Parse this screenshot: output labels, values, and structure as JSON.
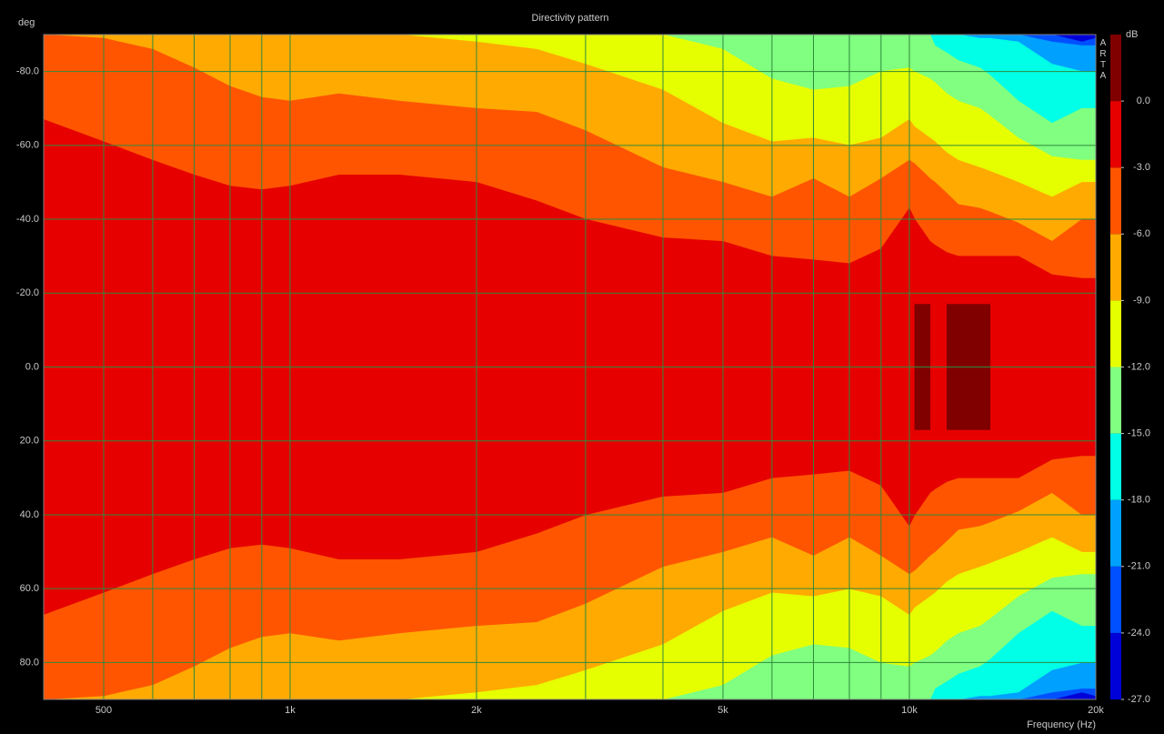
{
  "chart_data": {
    "type": "contour",
    "title": "Directivity pattern",
    "y_label": "deg",
    "x_label": "Frequency (Hz)",
    "watermark": "ARTA",
    "log_x": true,
    "grid": true,
    "grid_color": "#2f8a3c",
    "xlim": [
      400,
      20000
    ],
    "xticks": [
      500,
      {
        "value": 1000,
        "label": "1k"
      },
      {
        "value": 2000,
        "label": "2k"
      },
      {
        "value": 5000,
        "label": "5k"
      },
      {
        "value": 10000,
        "label": "10k"
      },
      {
        "value": 20000,
        "label": "20k"
      }
    ],
    "x_minor_grid": [
      600,
      700,
      800,
      900,
      3000,
      4000,
      6000,
      7000,
      8000,
      9000
    ],
    "ylim": [
      -90,
      90
    ],
    "yticks": [
      {
        "value": -80,
        "label": "-80.0"
      },
      {
        "value": -60,
        "label": "-60.0"
      },
      {
        "value": -40,
        "label": "-40.0"
      },
      {
        "value": -20,
        "label": "-20.0"
      },
      {
        "value": 0,
        "label": "0.0"
      },
      {
        "value": 20,
        "label": "20.0"
      },
      {
        "value": 40,
        "label": "40.0"
      },
      {
        "value": 60,
        "label": "60.0"
      },
      {
        "value": 80,
        "label": "80.0"
      }
    ],
    "x": [
      400,
      500,
      600,
      700,
      800,
      900,
      1000,
      1200,
      1500,
      2000,
      2500,
      3000,
      4000,
      5000,
      6000,
      7000,
      8000,
      9000,
      10000,
      10200,
      10800,
      11000,
      11500,
      12000,
      13000,
      13500,
      15000,
      17000,
      19000,
      20000
    ],
    "base_color": "#0000d8",
    "contours": [
      {
        "level": -24,
        "color": "#0050ff",
        "values": [
          90,
          90,
          90,
          90,
          90,
          90,
          90,
          90,
          90,
          90,
          90,
          90,
          90,
          90,
          90,
          90,
          90,
          90,
          90,
          90,
          90,
          90,
          90,
          90,
          90,
          90,
          90,
          90,
          88,
          89
        ]
      },
      {
        "level": -21,
        "color": "#00a0ff",
        "values": [
          90,
          90,
          90,
          90,
          90,
          90,
          90,
          90,
          90,
          90,
          90,
          90,
          90,
          90,
          90,
          90,
          90,
          90,
          90,
          90,
          90,
          90,
          90,
          90,
          90,
          90,
          90,
          88,
          87,
          87
        ]
      },
      {
        "level": -18,
        "color": "#00ffe6",
        "values": [
          90,
          90,
          90,
          90,
          90,
          90,
          90,
          90,
          90,
          90,
          90,
          90,
          90,
          90,
          90,
          90,
          90,
          90,
          90,
          90,
          90,
          90,
          90,
          90,
          89,
          89,
          88,
          82,
          80,
          80
        ]
      },
      {
        "level": -15,
        "color": "#80ff80",
        "values": [
          90,
          90,
          90,
          90,
          90,
          90,
          90,
          90,
          90,
          90,
          90,
          90,
          90,
          90,
          90,
          90,
          90,
          90,
          90,
          90,
          90,
          87,
          85,
          83,
          81,
          79,
          72,
          66,
          70,
          70
        ]
      },
      {
        "level": -12,
        "color": "#e6ff00",
        "values": [
          90,
          90,
          90,
          90,
          90,
          90,
          90,
          90,
          90,
          90,
          90,
          90,
          90,
          86,
          78,
          75,
          76,
          80,
          81,
          80,
          78,
          77,
          74,
          72,
          70,
          68,
          62,
          57,
          56,
          56
        ]
      },
      {
        "level": -9,
        "color": "#ffaa00",
        "values": [
          90,
          90,
          90,
          90,
          90,
          90,
          90,
          90,
          90,
          88,
          86,
          82,
          75,
          66,
          61,
          62,
          60,
          62,
          67,
          65,
          62,
          61,
          58,
          56,
          54,
          53,
          50,
          46,
          50,
          50
        ]
      },
      {
        "level": -6,
        "color": "#ff5500",
        "values": [
          90,
          89,
          86,
          81,
          76,
          73,
          72,
          74,
          72,
          70,
          69,
          64,
          54,
          50,
          46,
          51,
          46,
          51,
          56,
          55,
          51,
          50,
          47,
          44,
          43,
          42,
          39,
          34,
          40,
          40
        ]
      },
      {
        "level": -3,
        "color": "#e60000",
        "values": [
          67,
          61,
          56,
          52,
          49,
          48,
          49,
          52,
          52,
          50,
          45,
          40,
          35,
          34,
          30,
          29,
          28,
          32,
          43,
          40,
          34,
          33,
          31,
          30,
          30,
          30,
          30,
          25,
          24,
          24
        ]
      },
      {
        "level": 0,
        "color": "#800000",
        "values": [
          null,
          null,
          null,
          null,
          null,
          null,
          null,
          null,
          null,
          null,
          null,
          null,
          null,
          null,
          null,
          null,
          null,
          null,
          null,
          17,
          17,
          null,
          17,
          17,
          17,
          17,
          null,
          null,
          null,
          null
        ]
      }
    ],
    "colorbar": {
      "unit": "dB",
      "lim": [
        -27,
        3
      ],
      "ticks": [
        {
          "value": 0,
          "label": "0.0"
        },
        {
          "value": -3,
          "label": "-3.0"
        },
        {
          "value": -6,
          "label": "-6.0"
        },
        {
          "value": -9,
          "label": "-9.0"
        },
        {
          "value": -12,
          "label": "-12.0"
        },
        {
          "value": -15,
          "label": "-15.0"
        },
        {
          "value": -18,
          "label": "-18.0"
        },
        {
          "value": -21,
          "label": "-21.0"
        },
        {
          "value": -24,
          "label": "-24.0"
        },
        {
          "value": -27,
          "label": "-27.0"
        }
      ]
    }
  }
}
